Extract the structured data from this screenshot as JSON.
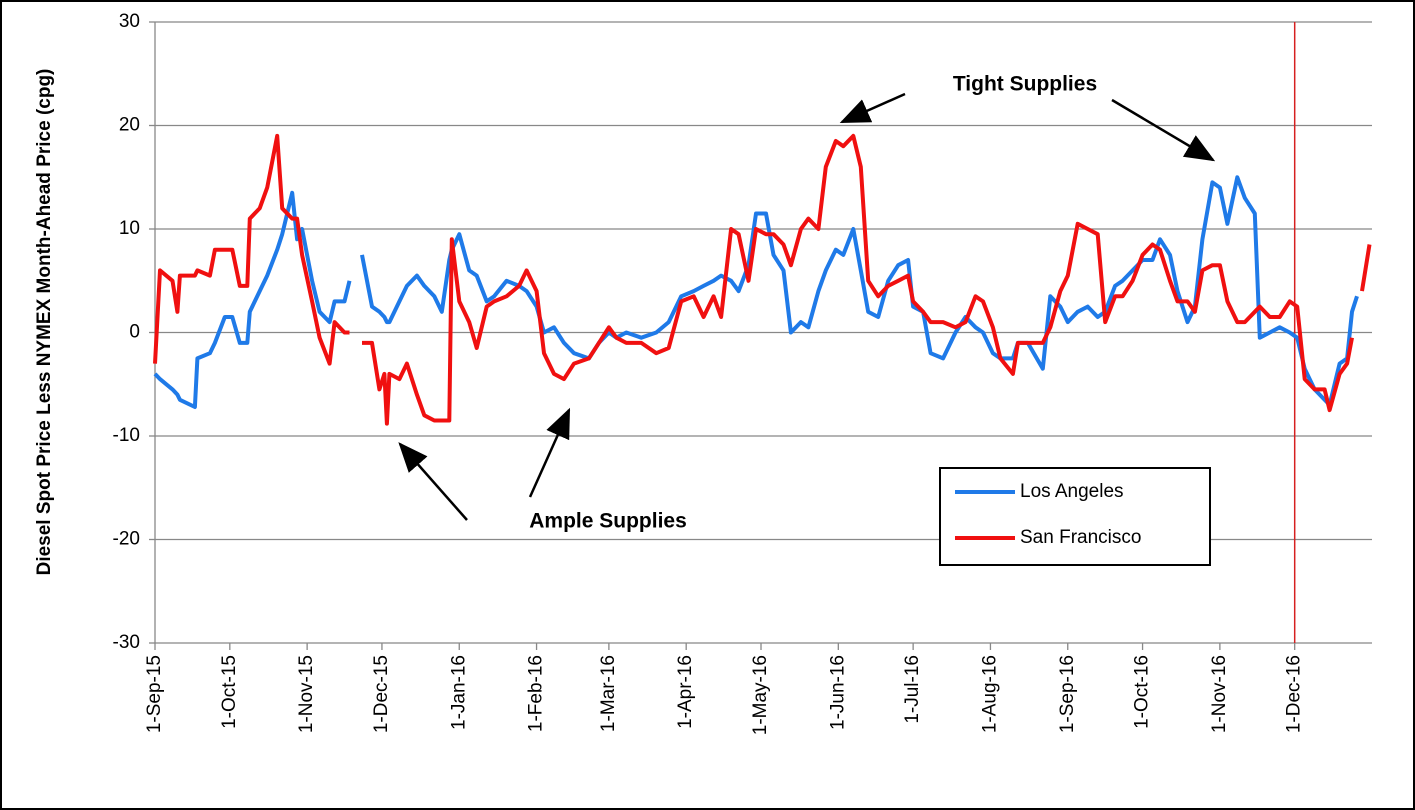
{
  "chart_data": {
    "type": "line",
    "y_label": "Diesel Spot Price Less NYMEX Month-Ahead Price (cpg)",
    "annotations": [
      "Tight Supplies",
      "Ample Supplies"
    ],
    "x": [
      "2015-09-01",
      "2015-09-03",
      "2015-09-08",
      "2015-09-10",
      "2015-09-11",
      "2015-09-17",
      "2015-09-18",
      "2015-09-23",
      "2015-09-25",
      "2015-09-29",
      "2015-10-02",
      "2015-10-05",
      "2015-10-08",
      "2015-10-09",
      "2015-10-13",
      "2015-10-16",
      "2015-10-20",
      "2015-10-22",
      "2015-10-26",
      "2015-10-28",
      "2015-10-30",
      "2015-11-03",
      "2015-11-06",
      "2015-11-10",
      "2015-11-12",
      "2015-11-16",
      "2015-11-18",
      "2015-11-20",
      "2015-11-23",
      "2015-11-27",
      "2015-11-30",
      "2015-12-02",
      "2015-12-03",
      "2015-12-04",
      "2015-12-08",
      "2015-12-11",
      "2015-12-15",
      "2015-12-18",
      "2015-12-22",
      "2015-12-25",
      "2015-12-28",
      "2015-12-29",
      "2016-01-01",
      "2016-01-05",
      "2016-01-08",
      "2016-01-12",
      "2016-01-15",
      "2016-01-20",
      "2016-01-25",
      "2016-01-28",
      "2016-02-01",
      "2016-02-04",
      "2016-02-08",
      "2016-02-12",
      "2016-02-16",
      "2016-02-22",
      "2016-02-26",
      "2016-03-01",
      "2016-03-04",
      "2016-03-08",
      "2016-03-14",
      "2016-03-20",
      "2016-03-25",
      "2016-03-30",
      "2016-04-04",
      "2016-04-08",
      "2016-04-12",
      "2016-04-15",
      "2016-04-19",
      "2016-04-22",
      "2016-04-26",
      "2016-04-29",
      "2016-05-03",
      "2016-05-06",
      "2016-05-10",
      "2016-05-13",
      "2016-05-17",
      "2016-05-20",
      "2016-05-24",
      "2016-05-27",
      "2016-05-31",
      "2016-06-03",
      "2016-06-07",
      "2016-06-10",
      "2016-06-13",
      "2016-06-17",
      "2016-06-21",
      "2016-06-25",
      "2016-06-29",
      "2016-07-01",
      "2016-07-05",
      "2016-07-08",
      "2016-07-13",
      "2016-07-18",
      "2016-07-22",
      "2016-07-26",
      "2016-07-29",
      "2016-08-02",
      "2016-08-05",
      "2016-08-10",
      "2016-08-12",
      "2016-08-16",
      "2016-08-22",
      "2016-08-25",
      "2016-08-29",
      "2016-09-01",
      "2016-09-05",
      "2016-09-09",
      "2016-09-13",
      "2016-09-16",
      "2016-09-20",
      "2016-09-23",
      "2016-09-27",
      "2016-10-01",
      "2016-10-05",
      "2016-10-08",
      "2016-10-12",
      "2016-10-15",
      "2016-10-19",
      "2016-10-22",
      "2016-10-25",
      "2016-10-29",
      "2016-11-01",
      "2016-11-04",
      "2016-11-08",
      "2016-11-11",
      "2016-11-15",
      "2016-11-17",
      "2016-11-21",
      "2016-11-25",
      "2016-11-29",
      "2016-12-02",
      "2016-12-05",
      "2016-12-09",
      "2016-12-13",
      "2016-12-15",
      "2016-12-19",
      "2016-12-22",
      "2016-12-24",
      "2016-12-26",
      "2016-12-28",
      "2016-12-31"
    ],
    "series": [
      {
        "name": "Los Angeles",
        "color": "#1f7ae8",
        "values": [
          -4,
          -4.5,
          -5.5,
          -6,
          -6.5,
          -7.2,
          -2.5,
          -2,
          -1,
          1.5,
          1.5,
          -1,
          -1,
          2,
          4,
          5.5,
          8,
          9.5,
          13.5,
          9,
          10,
          5,
          2,
          1,
          3,
          3,
          5,
          null,
          7.5,
          2.5,
          2,
          1.5,
          1,
          1,
          3,
          4.5,
          5.5,
          4.5,
          3.5,
          2,
          7,
          8,
          9.5,
          6,
          5.5,
          3,
          3.5,
          5,
          4.5,
          4,
          2.5,
          0,
          0.5,
          -1,
          -2,
          -2.5,
          -1,
          0,
          -0.5,
          0,
          -0.5,
          0,
          1,
          3.5,
          4,
          4.5,
          5,
          5.5,
          5,
          4,
          6.5,
          11.5,
          11.5,
          7.5,
          6,
          0,
          1,
          0.5,
          4,
          6,
          8,
          7.5,
          10,
          6,
          2,
          1.5,
          5,
          6.5,
          7,
          2.5,
          2,
          -2,
          -2.5,
          0,
          1.5,
          0.5,
          0,
          -2,
          -2.5,
          -2.5,
          -1,
          -1,
          -3.5,
          3.5,
          2.5,
          1,
          2,
          2.5,
          1.5,
          2,
          4.5,
          5,
          6,
          7,
          7,
          9,
          7.5,
          4,
          1,
          2.5,
          9,
          14.5,
          14,
          10.5,
          15,
          13,
          11.5,
          -0.5,
          0,
          0.5,
          0,
          -0.5,
          -3.5,
          -5.5,
          -6.5,
          -7,
          -3,
          -2.5,
          2,
          3.5,
          null,
          7
        ]
      },
      {
        "name": "San Francisco",
        "color": "#f01010",
        "values": [
          -3,
          6,
          5,
          2,
          5.5,
          5.5,
          6,
          5.5,
          8,
          8,
          8,
          4.5,
          4.5,
          11,
          12,
          14,
          19,
          12,
          11,
          11,
          7.5,
          3,
          -0.5,
          -3,
          1,
          0,
          0,
          null,
          -1,
          -1,
          -5.5,
          -4,
          -8.8,
          -4,
          -4.5,
          -3,
          -6,
          -8,
          -8.5,
          -8.5,
          -8.5,
          9,
          3,
          1,
          -1.5,
          2.5,
          3,
          3.5,
          4.5,
          6,
          4,
          -2,
          -4,
          -4.5,
          -3,
          -2.5,
          -1,
          0.5,
          -0.5,
          -1,
          -1,
          -2,
          -1.5,
          3,
          3.5,
          1.5,
          3.5,
          1.5,
          10,
          9.5,
          5,
          10,
          9.5,
          9.5,
          8.5,
          6.5,
          10,
          11,
          10,
          16,
          18.5,
          18,
          19,
          16,
          5,
          3.5,
          4.5,
          5,
          5.5,
          3,
          2,
          1,
          1,
          0.5,
          1,
          3.5,
          3,
          0.5,
          -2.5,
          -4,
          -1,
          -1,
          -1,
          0.5,
          4,
          5.5,
          10.5,
          10,
          9.5,
          1,
          3.5,
          3.5,
          5,
          7.5,
          8.5,
          8,
          5,
          3,
          3,
          2,
          6,
          6.5,
          6.5,
          3,
          1,
          1,
          2,
          2.5,
          1.5,
          1.5,
          3,
          2.5,
          -4.5,
          -5.5,
          -5.5,
          -7.5,
          -4,
          -3,
          -0.5,
          null,
          4,
          8.5
        ]
      }
    ],
    "xlim": [
      "2015-09-01",
      "2017-01-01"
    ],
    "xticks": [
      {
        "value": "2015-09-01",
        "label": "1-Sep-15"
      },
      {
        "value": "2015-10-01",
        "label": "1-Oct-15"
      },
      {
        "value": "2015-11-01",
        "label": "1-Nov-15"
      },
      {
        "value": "2015-12-01",
        "label": "1-Dec-15"
      },
      {
        "value": "2016-01-01",
        "label": "1-Jan-16"
      },
      {
        "value": "2016-02-01",
        "label": "1-Feb-16"
      },
      {
        "value": "2016-03-01",
        "label": "1-Mar-16"
      },
      {
        "value": "2016-04-01",
        "label": "1-Apr-16"
      },
      {
        "value": "2016-05-01",
        "label": "1-May-16"
      },
      {
        "value": "2016-06-01",
        "label": "1-Jun-16"
      },
      {
        "value": "2016-07-01",
        "label": "1-Jul-16"
      },
      {
        "value": "2016-08-01",
        "label": "1-Aug-16"
      },
      {
        "value": "2016-09-01",
        "label": "1-Sep-16"
      },
      {
        "value": "2016-10-01",
        "label": "1-Oct-16"
      },
      {
        "value": "2016-11-01",
        "label": "1-Nov-16"
      },
      {
        "value": "2016-12-01",
        "label": "1-Dec-16"
      }
    ],
    "ylim": [
      -30,
      30
    ],
    "yticks": [
      -30,
      -20,
      -10,
      0,
      10,
      20,
      30
    ],
    "grid": true,
    "vline": "2016-12-01",
    "vline_color": "#d62020",
    "legend": "lower right"
  }
}
